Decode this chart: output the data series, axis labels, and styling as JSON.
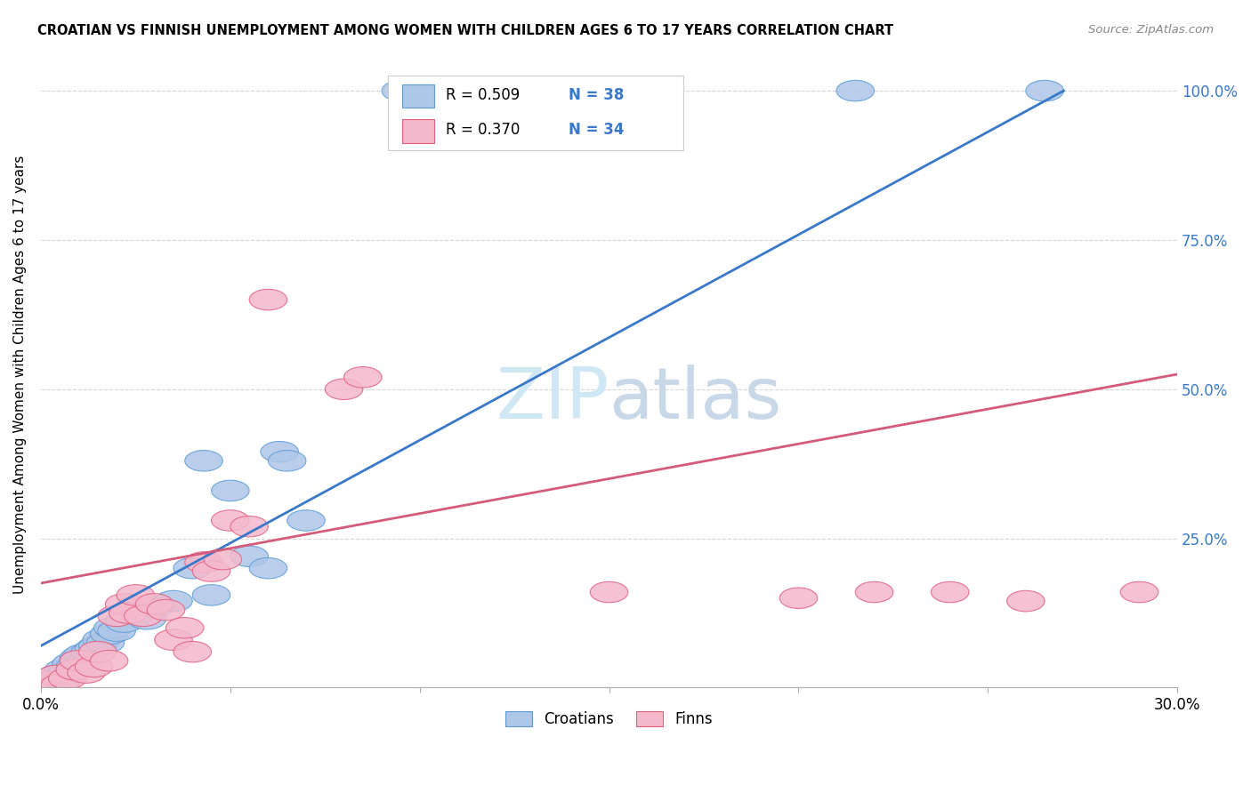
{
  "title": "CROATIAN VS FINNISH UNEMPLOYMENT AMONG WOMEN WITH CHILDREN AGES 6 TO 17 YEARS CORRELATION CHART",
  "source": "Source: ZipAtlas.com",
  "ylabel": "Unemployment Among Women with Children Ages 6 to 17 years",
  "xlim": [
    0.0,
    0.3
  ],
  "ylim": [
    0.0,
    1.05
  ],
  "xticks": [
    0.0,
    0.05,
    0.1,
    0.15,
    0.2,
    0.25,
    0.3
  ],
  "xticklabels": [
    "0.0%",
    "",
    "",
    "",
    "",
    "",
    "30.0%"
  ],
  "yticks": [
    0.0,
    0.25,
    0.5,
    0.75,
    1.0
  ],
  "yticklabels": [
    "",
    "25.0%",
    "50.0%",
    "75.0%",
    "100.0%"
  ],
  "croatian_color": "#aec6e8",
  "croatian_edge": "#5b9bd5",
  "finnish_color": "#f4b8cc",
  "finnish_edge": "#e06080",
  "blue_line_color": "#3a78c9",
  "pink_line_color": "#d45c7a",
  "watermark_color": "#d0e8f5",
  "legend_croatians": "Croatians",
  "legend_finns": "Finns",
  "blue_line": [
    0.0,
    0.07,
    0.27,
    1.0
  ],
  "pink_line": [
    0.0,
    0.175,
    0.3,
    0.525
  ],
  "blue_x": [
    0.002,
    0.003,
    0.004,
    0.005,
    0.006,
    0.007,
    0.008,
    0.009,
    0.01,
    0.011,
    0.012,
    0.013,
    0.014,
    0.015,
    0.016,
    0.017,
    0.018,
    0.019,
    0.02,
    0.022,
    0.025,
    0.028,
    0.03,
    0.035,
    0.04,
    0.043,
    0.045,
    0.05,
    0.055,
    0.06,
    0.063,
    0.065,
    0.07,
    0.095,
    0.1,
    0.12,
    0.215,
    0.265
  ],
  "blue_y": [
    0.005,
    0.01,
    0.02,
    0.008,
    0.03,
    0.025,
    0.04,
    0.035,
    0.05,
    0.055,
    0.045,
    0.06,
    0.065,
    0.07,
    0.08,
    0.075,
    0.09,
    0.1,
    0.095,
    0.11,
    0.125,
    0.115,
    0.135,
    0.145,
    0.2,
    0.38,
    0.155,
    0.33,
    0.22,
    0.2,
    0.395,
    0.38,
    0.28,
    1.0,
    1.0,
    1.0,
    1.0,
    1.0
  ],
  "pink_x": [
    0.002,
    0.004,
    0.005,
    0.007,
    0.009,
    0.01,
    0.012,
    0.014,
    0.015,
    0.018,
    0.02,
    0.022,
    0.023,
    0.025,
    0.027,
    0.03,
    0.033,
    0.035,
    0.038,
    0.04,
    0.043,
    0.045,
    0.048,
    0.05,
    0.055,
    0.06,
    0.08,
    0.085,
    0.15,
    0.2,
    0.22,
    0.24,
    0.26,
    0.29
  ],
  "pink_y": [
    0.01,
    0.02,
    0.005,
    0.015,
    0.03,
    0.045,
    0.025,
    0.035,
    0.06,
    0.045,
    0.12,
    0.14,
    0.125,
    0.155,
    0.12,
    0.14,
    0.13,
    0.08,
    0.1,
    0.06,
    0.21,
    0.195,
    0.215,
    0.28,
    0.27,
    0.65,
    0.5,
    0.52,
    0.16,
    0.15,
    0.16,
    0.16,
    0.145,
    0.16
  ]
}
